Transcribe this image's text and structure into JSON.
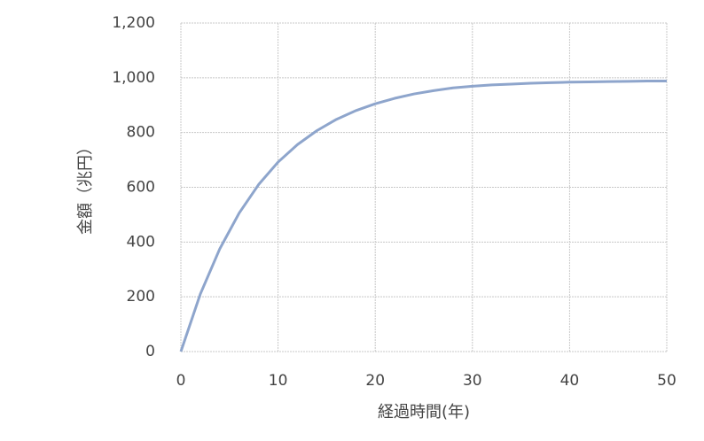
{
  "chart_data": {
    "type": "line",
    "x_label": "経過時間(年)",
    "y_label": "金額（兆円）",
    "x": [
      0,
      2,
      4,
      6,
      8,
      10,
      12,
      14,
      16,
      18,
      20,
      22,
      24,
      26,
      28,
      30,
      32,
      34,
      36,
      38,
      40,
      42,
      44,
      46,
      48,
      50
    ],
    "series": [
      {
        "color": "#8ea5cc",
        "values": [
          0,
          210,
          375,
          506,
          610,
          692,
          756,
          807,
          848,
          880,
          905,
          925,
          941,
          953,
          963,
          969,
          974,
          977,
          980,
          982,
          984,
          985,
          986,
          987,
          988,
          988
        ]
      }
    ],
    "xlim": [
      0,
      50
    ],
    "xticks": [
      0,
      10,
      20,
      30,
      40,
      50
    ],
    "ylim": [
      0,
      1200
    ],
    "yticks": [
      0,
      200,
      400,
      600,
      800,
      {
        "value": 1000,
        "label": "1,000"
      },
      {
        "value": 1200,
        "label": "1,200"
      }
    ],
    "grid": true
  }
}
